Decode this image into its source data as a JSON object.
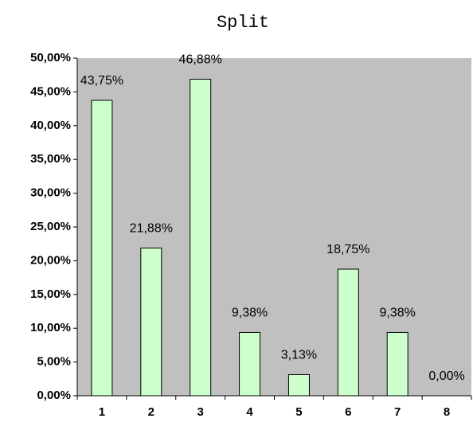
{
  "chart_data": {
    "type": "bar",
    "title": "Split",
    "categories": [
      "1",
      "2",
      "3",
      "4",
      "5",
      "6",
      "7",
      "8"
    ],
    "values": [
      43.75,
      21.88,
      46.88,
      9.38,
      3.13,
      18.75,
      9.38,
      0
    ],
    "value_labels": [
      "43,75%",
      "21,88%",
      "46,88%",
      "9,38%",
      "3,13%",
      "18,75%",
      "9,38%",
      "0,00%"
    ],
    "color": "#ccffcc",
    "ylim": [
      0,
      50
    ],
    "yticks": [
      {
        "value": 0,
        "label": "0,00%"
      },
      {
        "value": 5,
        "label": "5,00%"
      },
      {
        "value": 10,
        "label": "10,00%"
      },
      {
        "value": 15,
        "label": "15,00%"
      },
      {
        "value": 20,
        "label": "20,00%"
      },
      {
        "value": 25,
        "label": "25,00%"
      },
      {
        "value": 30,
        "label": "30,00%"
      },
      {
        "value": 35,
        "label": "35,00%"
      },
      {
        "value": 40,
        "label": "40,00%"
      },
      {
        "value": 45,
        "label": "45,00%"
      },
      {
        "value": 50,
        "label": "50,00%"
      }
    ],
    "grid": false
  }
}
